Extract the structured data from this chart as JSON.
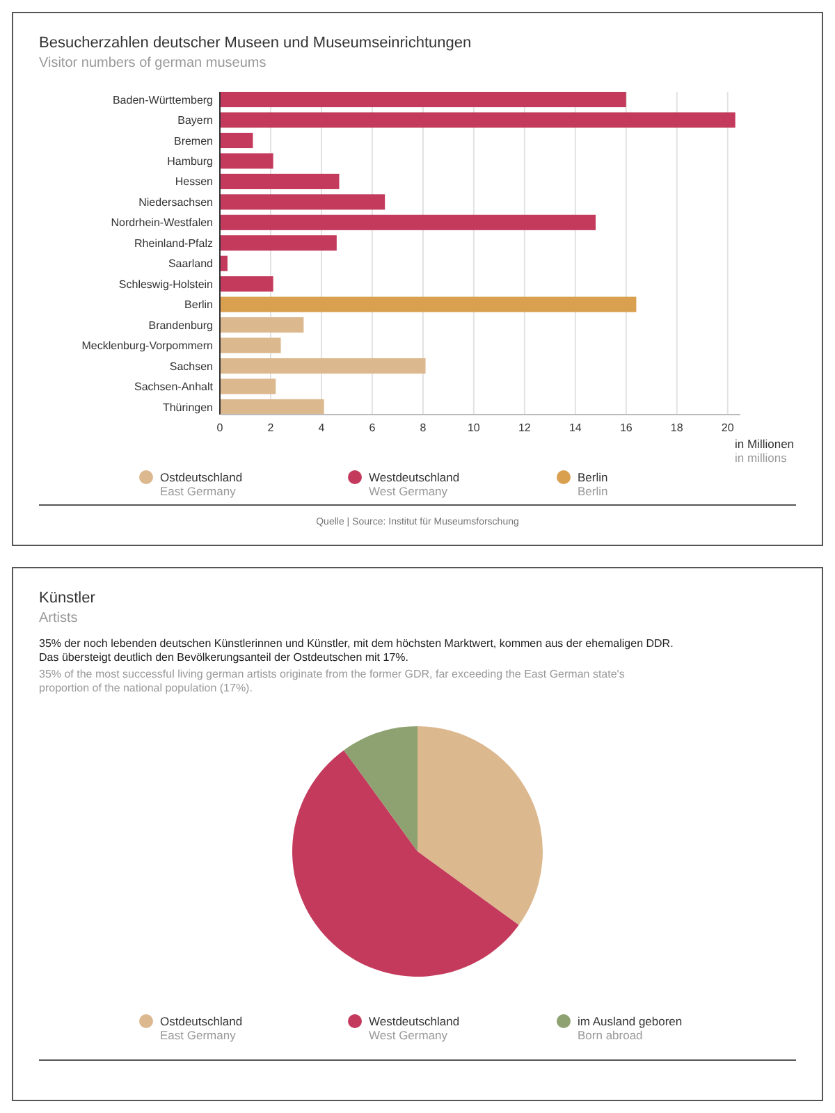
{
  "chart_data": [
    {
      "type": "bar",
      "orientation": "horizontal",
      "stacked": true,
      "title": "Besucherzahlen deutscher Museen und Museumseinrichtungen",
      "subtitle": "Visitor numbers of german museums",
      "categories": [
        "Baden-Württemberg",
        "Bayern",
        "Bremen",
        "Hamburg",
        "Hessen",
        "Niedersachsen",
        "Nordrhein-Westfalen",
        "Rheinland-Pfalz",
        "Saarland",
        "Schleswig-Holstein",
        "Berlin",
        "Brandenburg",
        "Mecklenburg-Vorpommern",
        "Sachsen",
        "Sachsen-Anhalt",
        "Thüringen"
      ],
      "series": [
        {
          "name": "Ostdeutschland\nEast Germany",
          "color": "#dcb88f",
          "values": [
            null,
            null,
            null,
            null,
            null,
            null,
            null,
            null,
            null,
            null,
            null,
            3.3,
            2.4,
            8.1,
            2.2,
            4.1
          ]
        },
        {
          "name": "Westdeutschland\nWest Germany",
          "color": "#c33a5c",
          "values": [
            16.0,
            20.3,
            1.3,
            2.1,
            4.7,
            6.5,
            14.8,
            4.6,
            0.3,
            2.1,
            null,
            null,
            null,
            null,
            null,
            null
          ]
        },
        {
          "name": "Berlin\nBerlin",
          "color": "#d9a050",
          "values": [
            null,
            null,
            null,
            null,
            null,
            null,
            null,
            null,
            null,
            null,
            16.4,
            null,
            null,
            null,
            null,
            null
          ]
        }
      ],
      "xlim": [
        0,
        20.5
      ],
      "xticks": [
        0,
        2,
        4,
        6,
        8,
        10,
        12,
        14,
        16,
        18,
        20
      ],
      "xlabel": "in Millionen\nin millions",
      "grid": "x",
      "legend": "bottom",
      "annotations": [
        "Quelle | Source: Institut für Museumsforschung"
      ]
    },
    {
      "type": "pie",
      "title": "Künstler",
      "subtitle": "Artists",
      "categories": [
        "Ostdeutschland\nEast Germany",
        "Westdeutschland\nWest Germany",
        "im Ausland geboren\nBorn abroad"
      ],
      "values": [
        35,
        55,
        10
      ],
      "colors": [
        "#dcb88f",
        "#c33a5c",
        "#8ea170"
      ],
      "legend": "bottom",
      "annotations": [
        "35% der noch lebenden deutschen Künstlerinnen und Künstler, mit dem höchsten Marktwert, kommen aus der ehemaligen DDR. Das übersteigt deutlich den Bevölkerungsanteil der Ostdeutschen mit 17%.",
        "35% of the most successful living german artists originate from the former GDR, far exceeding the East German state's proportion of the national population (17%)."
      ]
    }
  ]
}
